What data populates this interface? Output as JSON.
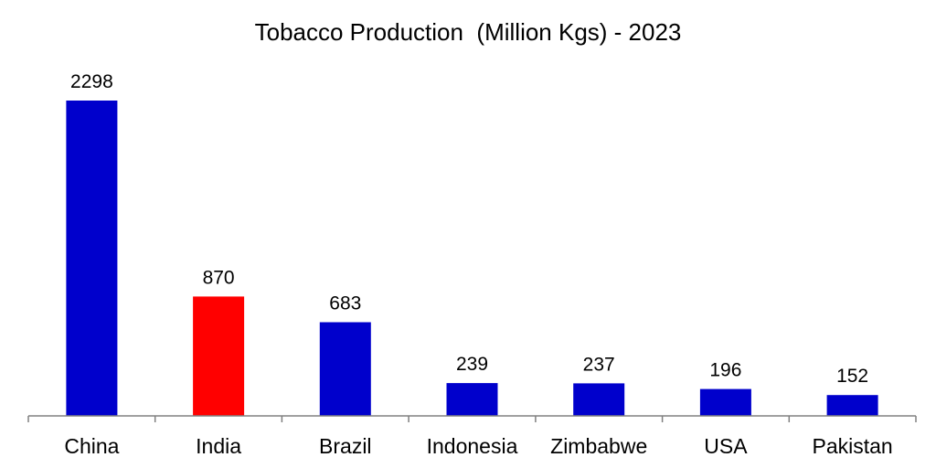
{
  "chart_data": {
    "type": "bar",
    "title": "Tobacco Production  (Million Kgs) - 2023",
    "xlabel": "",
    "ylabel": "",
    "categories": [
      "China",
      "India",
      "Brazil",
      "Indonesia",
      "Zimbabwe",
      "USA",
      "Pakistan"
    ],
    "values": [
      2298,
      870,
      683,
      239,
      237,
      196,
      152
    ],
    "ylim": [
      0,
      2298
    ],
    "grid": false,
    "legend": "none",
    "bar_colors": [
      "#0000CC",
      "#FF0000",
      "#0000CC",
      "#0000CC",
      "#0000CC",
      "#0000CC",
      "#0000CC"
    ],
    "axis_color": "#808080",
    "data_labels": true
  }
}
